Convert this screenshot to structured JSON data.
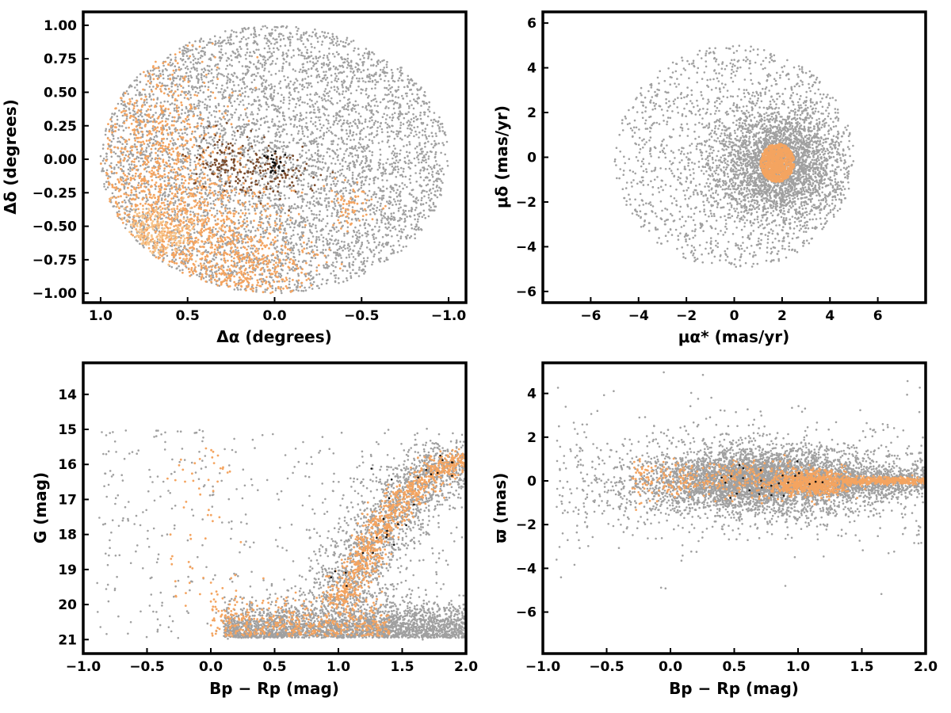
{
  "colors": {
    "field": "#a0a0a0",
    "members": "#f4a460",
    "members_light": "#f7c48a",
    "core": "#7a4a2a",
    "black": "#111111"
  },
  "chart_data": [
    {
      "id": "sky",
      "type": "scatter",
      "xlabel": "Δα (degrees)",
      "ylabel": "Δδ (degrees)",
      "xlim": [
        1.1,
        -1.1
      ],
      "ylim": [
        -1.07,
        1.1
      ],
      "xticks": [
        "1.0",
        "0.5",
        "0.0",
        "−0.5",
        "−1.0"
      ],
      "xtick_values": [
        1.0,
        0.5,
        0.0,
        -0.5,
        -1.0
      ],
      "yticks": [
        "1.00",
        "0.75",
        "0.50",
        "0.25",
        "0.00",
        "−0.25",
        "−0.50",
        "−0.75",
        "−1.00"
      ],
      "ytick_values": [
        1.0,
        0.75,
        0.5,
        0.25,
        0.0,
        -0.25,
        -0.5,
        -0.75,
        -1.0
      ],
      "field_region": {
        "shape": "ellipse",
        "center": [
          0.0,
          0.0
        ],
        "radius_x": 1.0,
        "radius_y": 1.0
      },
      "member_regions": [
        {
          "center": [
            0.7,
            -0.15
          ],
          "spread": [
            0.2,
            0.55
          ]
        },
        {
          "center": [
            0.35,
            -0.6
          ],
          "spread": [
            0.25,
            0.25
          ]
        },
        {
          "center": [
            0.15,
            -0.85
          ],
          "spread": [
            0.2,
            0.12
          ]
        },
        {
          "center": [
            -0.45,
            -0.35
          ],
          "spread": [
            0.06,
            0.08
          ]
        }
      ],
      "core_regions": [
        {
          "center": [
            0.28,
            0.0
          ],
          "spread": [
            0.1,
            0.12
          ]
        },
        {
          "center": [
            0.0,
            -0.1
          ],
          "spread": [
            0.12,
            0.08
          ]
        }
      ],
      "grid": false
    },
    {
      "id": "pm",
      "type": "scatter",
      "xlabel": "μα* (mas/yr)",
      "ylabel": "μδ (mas/yr)",
      "xlim": [
        -8,
        8
      ],
      "ylim": [
        -6.5,
        6.5
      ],
      "xticks": [
        "−6",
        "−4",
        "−2",
        "0",
        "2",
        "4",
        "6"
      ],
      "xtick_values": [
        -6,
        -4,
        -2,
        0,
        2,
        4,
        6
      ],
      "yticks": [
        "6",
        "4",
        "2",
        "0",
        "−2",
        "−4",
        "−6"
      ],
      "ytick_values": [
        6,
        4,
        2,
        0,
        -2,
        -4,
        -6
      ],
      "field_region": {
        "shape": "disk",
        "center": [
          0.0,
          0.0
        ],
        "radius": 5.0,
        "concentration_center": [
          1.8,
          -0.3
        ]
      },
      "member_region": {
        "center": [
          1.8,
          -0.2
        ],
        "spread": [
          0.4,
          0.4
        ]
      },
      "grid": false
    },
    {
      "id": "cmd",
      "type": "scatter",
      "xlabel": "Bp − Rp (mag)",
      "ylabel": "G (mag)",
      "xlim": [
        -1.0,
        2.0
      ],
      "ylim": [
        21.4,
        13.1
      ],
      "xticks": [
        "−1.0",
        "−0.5",
        "0.0",
        "0.5",
        "1.0",
        "1.5",
        "2.0"
      ],
      "xtick_values": [
        -1.0,
        -0.5,
        0.0,
        0.5,
        1.0,
        1.5,
        2.0
      ],
      "yticks": [
        "21",
        "20",
        "19",
        "18",
        "17",
        "16",
        "15",
        "14"
      ],
      "ytick_values": [
        21,
        20,
        19,
        18,
        17,
        16,
        15,
        14
      ],
      "sequence": [
        [
          1.0,
          20.0
        ],
        [
          1.15,
          19.0
        ],
        [
          1.3,
          18.0
        ],
        [
          1.5,
          17.0
        ],
        [
          1.75,
          16.2
        ],
        [
          2.0,
          15.8
        ]
      ],
      "grid": false
    },
    {
      "id": "parallax",
      "type": "scatter",
      "xlabel": "Bp − Rp (mag)",
      "ylabel": "ϖ (mas)",
      "xlim": [
        -1.0,
        2.0
      ],
      "ylim": [
        -7.9,
        5.4
      ],
      "xticks": [
        "−1.0",
        "−0.5",
        "0.0",
        "0.5",
        "1.0",
        "1.5",
        "2.0"
      ],
      "xtick_values": [
        -1.0,
        -0.5,
        0.0,
        0.5,
        1.0,
        1.5,
        2.0
      ],
      "yticks": [
        "4",
        "2",
        "0",
        "−2",
        "−4",
        "−6"
      ],
      "ytick_values": [
        4,
        2,
        0,
        -2,
        -4,
        -6
      ],
      "field_region": {
        "center": [
          0.7,
          0.0
        ],
        "spread": [
          0.45,
          0.8
        ]
      },
      "member_region": {
        "center": [
          1.1,
          -0.1
        ],
        "spread": [
          0.2,
          0.25
        ]
      },
      "grid": false
    }
  ]
}
